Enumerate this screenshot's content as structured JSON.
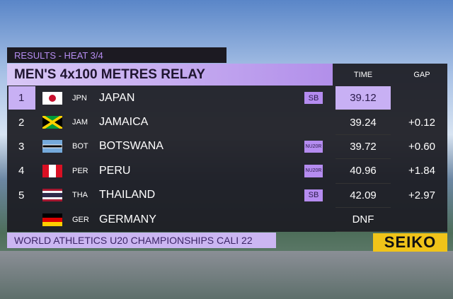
{
  "header": {
    "subtitle": "RESULTS - HEAT 3/4",
    "title": "MEN'S 4x100 METRES RELAY",
    "columns": [
      "TIME",
      "GAP"
    ]
  },
  "rows": [
    {
      "rank": 1,
      "code": "JPN",
      "country": "JAPAN",
      "record": "SB",
      "time": 39.12
    },
    {
      "rank": 2,
      "code": "JAM",
      "country": "JAMAICA",
      "time": 39.24,
      "gap": "+0.12"
    },
    {
      "rank": 3,
      "code": "BOT",
      "country": "BOTSWANA",
      "record": "NU20R",
      "time": 39.72,
      "gap": "+0.60"
    },
    {
      "rank": 4,
      "code": "PER",
      "country": "PERU",
      "record": "NU20R",
      "time": 40.96,
      "gap": "+1.84"
    },
    {
      "rank": 5,
      "code": "THA",
      "country": "THAILAND",
      "record": "SB",
      "time": 42.09,
      "gap": "+2.97"
    },
    {
      "code": "GER",
      "country": "GERMANY",
      "time": "DNF"
    }
  ],
  "footer": {
    "event": "WORLD ATHLETICS U20 CHAMPIONSHIPS CALI 22",
    "sponsor": "SEIKO"
  }
}
